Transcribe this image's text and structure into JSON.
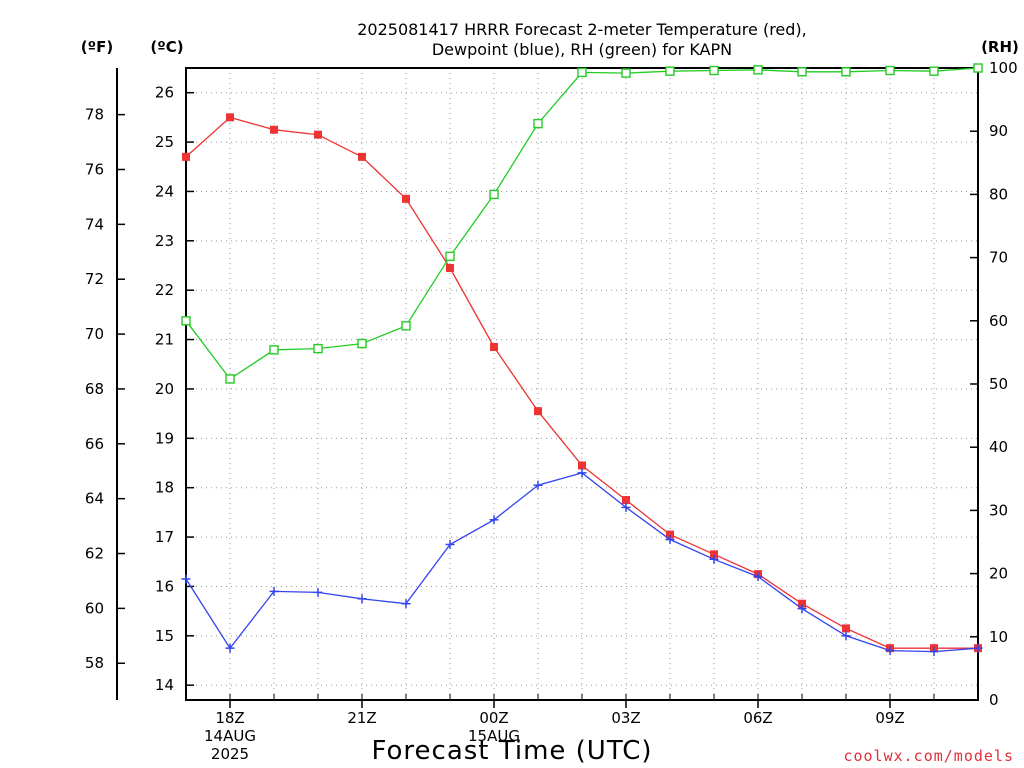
{
  "title_line1": "2025081417 HRRR Forecast 2-meter Temperature (red),",
  "title_line2": "Dewpoint (blue), RH (green) for KAPN",
  "unit_f": "(ºF)",
  "unit_c": "(ºC)",
  "unit_rh": "(RH)",
  "xlabel": "Forecast Time (UTC)",
  "credit": "coolwx.com/models",
  "colors": {
    "temperature": "#ee3333",
    "dewpoint": "#3344ee",
    "rh": "#22cc22",
    "grid": "#999999"
  },
  "chart_data": {
    "type": "line",
    "title": "2025081417 HRRR Forecast 2-meter Temperature (red), Dewpoint (blue), RH (green) for KAPN",
    "xlabel": "Forecast Time (UTC)",
    "grid": true,
    "x_hours": [
      17,
      18,
      19,
      20,
      21,
      22,
      23,
      24,
      25,
      26,
      27,
      28,
      29,
      30,
      31,
      32,
      33,
      34,
      35
    ],
    "x_ticks": [
      {
        "hour": 18,
        "lines": [
          "18Z",
          "14AUG",
          "2025"
        ]
      },
      {
        "hour": 21,
        "lines": [
          "21Z"
        ]
      },
      {
        "hour": 24,
        "lines": [
          "00Z",
          "15AUG"
        ]
      },
      {
        "hour": 27,
        "lines": [
          "03Z"
        ]
      },
      {
        "hour": 30,
        "lines": [
          "06Z"
        ]
      },
      {
        "hour": 33,
        "lines": [
          "09Z"
        ]
      }
    ],
    "xlim": [
      17,
      35
    ],
    "left_axis_c": {
      "ylim": [
        13.7,
        26.5
      ],
      "ticks": [
        14,
        15,
        16,
        17,
        18,
        19,
        20,
        21,
        22,
        23,
        24,
        25,
        26
      ]
    },
    "left_axis_f": {
      "ticks": [
        58,
        60,
        62,
        64,
        66,
        68,
        70,
        72,
        74,
        76,
        78
      ]
    },
    "right_axis_rh": {
      "ylim": [
        0,
        100
      ],
      "ticks": [
        0,
        10,
        20,
        30,
        40,
        50,
        60,
        70,
        80,
        90,
        100
      ]
    },
    "series": [
      {
        "name": "Temperature",
        "axis": "C",
        "color": "#ee3333",
        "marker": "filled-square",
        "values": [
          24.7,
          25.5,
          25.25,
          25.15,
          24.7,
          23.85,
          22.45,
          20.85,
          19.55,
          18.45,
          17.75,
          17.05,
          16.65,
          16.25,
          15.65,
          15.15,
          14.75,
          14.75,
          14.75
        ]
      },
      {
        "name": "Dewpoint",
        "axis": "C",
        "color": "#3344ee",
        "marker": "plus",
        "values": [
          16.15,
          14.75,
          15.9,
          15.88,
          15.75,
          15.65,
          16.85,
          17.35,
          18.05,
          18.3,
          17.6,
          16.95,
          16.55,
          16.2,
          15.55,
          15.0,
          14.7,
          14.68,
          14.75
        ]
      },
      {
        "name": "RH",
        "axis": "RH",
        "color": "#22cc22",
        "marker": "open-square",
        "values": [
          60.0,
          50.8,
          55.4,
          55.6,
          56.4,
          59.2,
          70.2,
          80.0,
          91.2,
          99.3,
          99.2,
          99.5,
          99.6,
          99.7,
          99.4,
          99.4,
          99.6,
          99.5,
          100.0
        ]
      }
    ]
  }
}
